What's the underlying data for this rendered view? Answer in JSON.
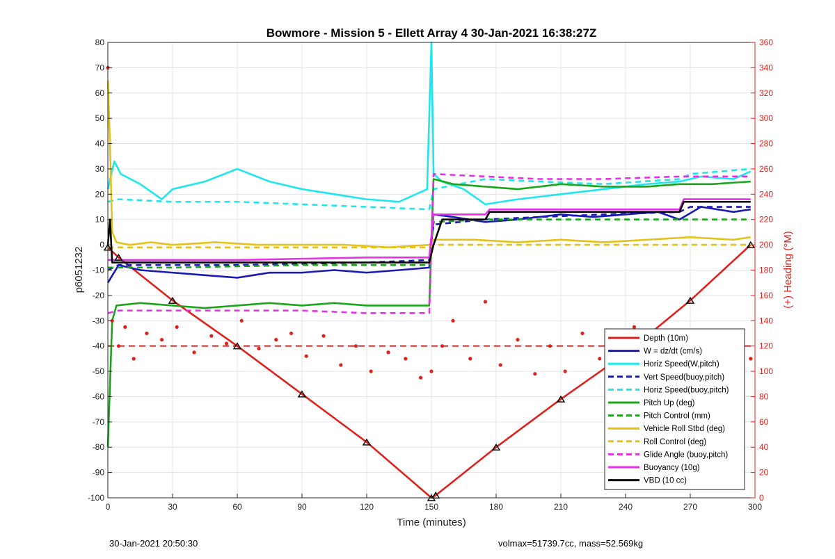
{
  "chart_data": {
    "type": "line",
    "title": "Bowmore - Mission 5 - Ellett Array 4 30-Jan-2021 16:38:27Z",
    "xlabel": "Time (minutes)",
    "ylabel": "p6051232",
    "y2label": "(+) Heading (°M)",
    "xlim": [
      0,
      300
    ],
    "ylim": [
      -100,
      80
    ],
    "y2lim": [
      0,
      360
    ],
    "xticks": [
      0,
      30,
      60,
      90,
      120,
      150,
      180,
      210,
      240,
      270,
      300
    ],
    "yticks": [
      -100,
      -90,
      -80,
      -70,
      -60,
      -50,
      -40,
      -30,
      -20,
      -10,
      0,
      10,
      20,
      30,
      40,
      50,
      60,
      70,
      80
    ],
    "y2ticks": [
      0,
      20,
      40,
      60,
      80,
      100,
      120,
      140,
      160,
      180,
      200,
      220,
      240,
      260,
      280,
      300,
      320,
      340,
      360
    ],
    "grid": true,
    "legend_position": "bottom-right",
    "series": [
      {
        "name": "Depth (10m)",
        "color": "#e0201b",
        "axis": "left",
        "x": [
          0,
          5,
          30,
          60,
          90,
          120,
          150,
          152,
          180,
          210,
          240,
          270,
          298
        ],
        "y": [
          -1,
          -5,
          -22,
          -40,
          -59,
          -78,
          -100,
          -99,
          -80,
          -61,
          -43,
          -22,
          0
        ]
      },
      {
        "name": "W = dz/dt (cm/s)",
        "color": "#1a1ab4",
        "axis": "left",
        "x": [
          0,
          5,
          15,
          30,
          45,
          60,
          75,
          90,
          105,
          120,
          135,
          149,
          151,
          160,
          175,
          190,
          210,
          225,
          240,
          255,
          265,
          275,
          290,
          298
        ],
        "y": [
          -15,
          -8,
          -10,
          -11,
          -12,
          -13,
          -11,
          -11,
          -10,
          -11,
          -10,
          -9,
          12,
          11,
          9,
          10,
          12,
          11,
          12,
          13,
          10,
          15,
          13,
          14
        ]
      },
      {
        "name": "Horiz Speed(W,pitch)",
        "color": "#1ee6ec",
        "axis": "left",
        "x": [
          0,
          3,
          6,
          15,
          25,
          30,
          45,
          60,
          75,
          90,
          105,
          120,
          135,
          148,
          150,
          151,
          155,
          165,
          175,
          190,
          210,
          230,
          250,
          265,
          275,
          290,
          298
        ],
        "y": [
          22,
          33,
          28,
          24,
          18,
          22,
          25,
          30,
          25,
          22,
          20,
          18,
          17,
          22,
          80,
          28,
          25,
          22,
          16,
          18,
          20,
          22,
          24,
          25,
          27,
          26,
          29
        ]
      },
      {
        "name": "Vert Speed(buoy,pitch)",
        "color": "#1a1ab4",
        "axis": "left",
        "dash": true,
        "x": [
          0,
          5,
          30,
          60,
          90,
          120,
          149,
          151,
          175,
          200,
          230,
          265,
          270,
          298
        ],
        "y": [
          -10,
          -8,
          -8,
          -8,
          -7.5,
          -7,
          -6,
          8,
          10,
          11,
          12,
          13,
          15,
          15
        ]
      },
      {
        "name": "Horiz Speed(buoy,pitch)",
        "color": "#1ee6ec",
        "axis": "left",
        "dash": true,
        "x": [
          0,
          5,
          30,
          60,
          90,
          120,
          149,
          151,
          175,
          200,
          230,
          265,
          270,
          298
        ],
        "y": [
          17,
          18,
          17,
          17,
          16,
          15,
          14,
          22,
          26,
          25,
          24,
          26,
          28,
          30
        ]
      },
      {
        "name": "Pitch Up (deg)",
        "color": "#1aa51a",
        "axis": "left",
        "x": [
          0,
          2,
          4,
          15,
          30,
          45,
          60,
          75,
          90,
          105,
          120,
          135,
          149,
          151,
          160,
          175,
          190,
          210,
          230,
          250,
          265,
          280,
          298
        ],
        "y": [
          -80,
          -30,
          -24,
          -23,
          -24,
          -25,
          -24,
          -23,
          -24,
          -23,
          -24,
          -24,
          -24,
          26,
          24,
          23,
          22,
          24,
          23,
          23,
          24,
          24,
          25
        ]
      },
      {
        "name": "Pitch Control (mm)",
        "color": "#1aa51a",
        "axis": "left",
        "dash": true,
        "x": [
          0,
          5,
          30,
          60,
          90,
          120,
          149,
          151,
          175,
          200,
          230,
          265,
          270,
          298
        ],
        "y": [
          -9,
          -9,
          -9,
          -8.5,
          -8,
          -8,
          -8,
          9,
          10,
          10,
          10,
          10,
          10,
          10
        ]
      },
      {
        "name": "Vehicle Roll Stbd (deg)",
        "color": "#e4c21a",
        "axis": "left",
        "x": [
          0,
          1,
          2,
          4,
          10,
          20,
          30,
          50,
          70,
          90,
          110,
          130,
          149,
          151,
          170,
          190,
          210,
          230,
          250,
          270,
          290,
          298
        ],
        "y": [
          65,
          40,
          5,
          1,
          0,
          1,
          0,
          1,
          0,
          0,
          0,
          -1,
          0,
          2,
          2,
          1,
          2,
          1,
          2,
          3,
          2,
          3
        ]
      },
      {
        "name": "Roll Control (deg)",
        "color": "#e4c21a",
        "axis": "left",
        "dash": true,
        "x": [
          0,
          5,
          30,
          60,
          90,
          120,
          149,
          151,
          175,
          200,
          230,
          265,
          270,
          298
        ],
        "y": [
          -1,
          -1,
          -1,
          -1,
          -1,
          -1,
          -1,
          0,
          0,
          0,
          0,
          0,
          0,
          0
        ]
      },
      {
        "name": "Glide Angle (buoy,pitch)",
        "color": "#e530e5",
        "axis": "left",
        "dash": true,
        "x": [
          0,
          5,
          30,
          60,
          90,
          120,
          149,
          151,
          175,
          200,
          230,
          265,
          270,
          298
        ],
        "y": [
          -27,
          -26,
          -26,
          -26,
          -26,
          -27,
          -27,
          28,
          27,
          26,
          26,
          27,
          27,
          27
        ]
      },
      {
        "name": "Buoyancy (10g)",
        "color": "#e530e5",
        "axis": "left",
        "x": [
          0,
          5,
          30,
          60,
          90,
          120,
          149,
          151,
          175,
          177,
          200,
          230,
          265,
          267,
          298
        ],
        "y": [
          -6,
          -6,
          -6,
          -6,
          -5.5,
          -5,
          -5,
          12,
          12,
          14,
          14,
          14,
          14,
          18,
          18
        ]
      },
      {
        "name": "VBD (10 cc)",
        "color": "#000000",
        "axis": "left",
        "x": [
          0,
          1,
          2,
          5,
          30,
          60,
          90,
          120,
          149,
          151,
          155,
          175,
          177,
          200,
          230,
          265,
          267,
          298
        ],
        "y": [
          0,
          10,
          -7,
          -7,
          -7,
          -7,
          -7,
          -7,
          -7,
          0,
          10,
          10,
          13,
          13,
          13,
          13,
          17,
          17
        ]
      },
      {
        "name": "Heading (°M)",
        "color": "#e0201b",
        "axis": "right",
        "markers": "dots",
        "x": [
          0,
          2,
          5,
          8,
          12,
          18,
          25,
          32,
          40,
          48,
          55,
          62,
          70,
          78,
          85,
          92,
          100,
          108,
          115,
          122,
          130,
          138,
          145,
          150,
          155,
          160,
          168,
          175,
          182,
          190,
          198,
          205,
          212,
          220,
          228,
          236,
          244,
          252,
          260,
          268,
          276,
          284,
          292,
          298
        ],
        "y": [
          340,
          140,
          120,
          135,
          110,
          130,
          125,
          135,
          115,
          128,
          122,
          140,
          118,
          125,
          130,
          112,
          128,
          105,
          120,
          100,
          115,
          110,
          95,
          100,
          120,
          140,
          110,
          155,
          105,
          125,
          98,
          120,
          100,
          130,
          110,
          125,
          135,
          115,
          128,
          120,
          118,
          125,
          115,
          110
        ]
      }
    ],
    "reference_lines": [
      {
        "color": "#e0201b",
        "axis": "right",
        "y": 120,
        "dash": true
      }
    ]
  },
  "footer": {
    "timestamp": "30-Jan-2021 20:50:30",
    "stats": "volmax=51739.7cc, mass=52.569kg"
  }
}
